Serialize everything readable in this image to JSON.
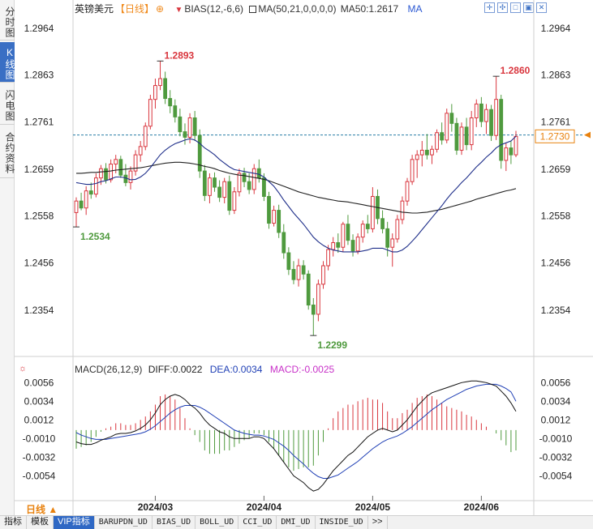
{
  "left_tabs": [
    {
      "label": "分时图",
      "active": false
    },
    {
      "label": "K线图",
      "active": true
    },
    {
      "label": "闪电图",
      "active": false
    },
    {
      "label": "合约资料",
      "active": false
    }
  ],
  "header": {
    "title": "英镑美元",
    "period": "【日线】",
    "settings_icon": "⊕",
    "bias_label": "BIAS(12,-6,6)",
    "ma_label": "MA(50,21,0,0,0,0)",
    "ma50_label": "MA50:1.2617",
    "ma_link": "MA"
  },
  "tool_icons": [
    "expand-icon",
    "shrink-icon",
    "window-icon",
    "restore-icon",
    "close-icon"
  ],
  "macd_header": {
    "title": "MACD(26,12,9)",
    "diff": "DIFF:0.0022",
    "dea": "DEA:0.0034",
    "macd": "MACD:-0.0025"
  },
  "period_badge": "日线 ▲",
  "bottom_tabs": [
    {
      "label": "指标",
      "active": false,
      "mono": false
    },
    {
      "label": "模板",
      "active": false,
      "mono": false
    },
    {
      "label": "VIP指标",
      "active": true,
      "mono": false
    },
    {
      "label": "BARUPDN_UD",
      "active": false,
      "mono": true
    },
    {
      "label": "BIAS_UD",
      "active": false,
      "mono": true
    },
    {
      "label": "BOLL_UD",
      "active": false,
      "mono": true
    },
    {
      "label": "CCI_UD",
      "active": false,
      "mono": true
    },
    {
      "label": "DMI_UD",
      "active": false,
      "mono": true
    },
    {
      "label": "INSIDE_UD",
      "active": false,
      "mono": true
    },
    {
      "label": ">>",
      "active": false,
      "mono": false
    }
  ],
  "colors": {
    "up": "#d9363e",
    "down": "#4f9a3e",
    "ma21": "#1f2f8a",
    "ma50": "#222222",
    "crosshair": "#2a7fa6",
    "price_tag": "#e8820f",
    "macd_dea": "#1f3fb5",
    "macd_diff": "#111111"
  },
  "chart_data": [
    {
      "type": "candlestick",
      "title": "英镑美元 日线",
      "ylim": [
        1.228,
        1.299
      ],
      "y_ticks": [
        "1.2964",
        "1.2863",
        "1.2761",
        "1.2659",
        "1.2558",
        "1.2456",
        "1.2354"
      ],
      "y_tick_values": [
        1.2964,
        1.2863,
        1.2761,
        1.2659,
        1.2558,
        1.2456,
        1.2354
      ],
      "x_ticks": [
        "2024/03",
        "2024/04",
        "2024/05",
        "2024/06"
      ],
      "x_tick_index": [
        16,
        38,
        60,
        82
      ],
      "annotations": [
        {
          "text": "1.2893",
          "index": 17,
          "value": 1.2893,
          "color": "up",
          "pos": "high"
        },
        {
          "text": "1.2534",
          "index": 0,
          "value": 1.2534,
          "color": "down",
          "pos": "low"
        },
        {
          "text": "1.2299",
          "index": 48,
          "value": 1.2299,
          "color": "down",
          "pos": "low"
        },
        {
          "text": "1.2860",
          "index": 85,
          "value": 1.286,
          "color": "up",
          "pos": "high"
        }
      ],
      "current_price": {
        "label": "1.2730",
        "value": 1.273
      },
      "dashed_level": 1.2733,
      "ohlc": [
        [
          1.2565,
          1.2598,
          1.2534,
          1.259
        ],
        [
          1.259,
          1.2608,
          1.257,
          1.2575
        ],
        [
          1.2575,
          1.2622,
          1.256,
          1.2612
        ],
        [
          1.2612,
          1.263,
          1.2595,
          1.2605
        ],
        [
          1.2605,
          1.265,
          1.2598,
          1.264
        ],
        [
          1.264,
          1.2668,
          1.2625,
          1.266
        ],
        [
          1.266,
          1.2672,
          1.2628,
          1.2636
        ],
        [
          1.2636,
          1.268,
          1.263,
          1.267
        ],
        [
          1.267,
          1.269,
          1.265,
          1.268
        ],
        [
          1.268,
          1.2688,
          1.264,
          1.2646
        ],
        [
          1.2646,
          1.267,
          1.2622,
          1.263
        ],
        [
          1.263,
          1.2665,
          1.2615,
          1.2655
        ],
        [
          1.2655,
          1.27,
          1.2645,
          1.269
        ],
        [
          1.269,
          1.272,
          1.2675,
          1.2708
        ],
        [
          1.2708,
          1.276,
          1.27,
          1.2752
        ],
        [
          1.2752,
          1.282,
          1.2745,
          1.281
        ],
        [
          1.281,
          1.2855,
          1.279,
          1.284
        ],
        [
          1.284,
          1.2893,
          1.283,
          1.2855
        ],
        [
          1.2855,
          1.287,
          1.28,
          1.2812
        ],
        [
          1.2812,
          1.283,
          1.278,
          1.2796
        ],
        [
          1.2796,
          1.281,
          1.276,
          1.2772
        ],
        [
          1.2772,
          1.279,
          1.273,
          1.274
        ],
        [
          1.274,
          1.2758,
          1.2712,
          1.2728
        ],
        [
          1.2728,
          1.278,
          1.2715,
          1.277
        ],
        [
          1.277,
          1.2785,
          1.272,
          1.2732
        ],
        [
          1.2732,
          1.2745,
          1.264,
          1.2655
        ],
        [
          1.2655,
          1.2668,
          1.259,
          1.2602
        ],
        [
          1.2602,
          1.265,
          1.2585,
          1.264
        ],
        [
          1.264,
          1.2652,
          1.261,
          1.262
        ],
        [
          1.262,
          1.2635,
          1.2588,
          1.2598
        ],
        [
          1.2598,
          1.264,
          1.2585,
          1.2632
        ],
        [
          1.2632,
          1.2645,
          1.256,
          1.257
        ],
        [
          1.257,
          1.262,
          1.2562,
          1.261
        ],
        [
          1.261,
          1.266,
          1.26,
          1.265
        ],
        [
          1.265,
          1.2662,
          1.262,
          1.2632
        ],
        [
          1.2632,
          1.265,
          1.2605,
          1.2615
        ],
        [
          1.2615,
          1.267,
          1.2605,
          1.266
        ],
        [
          1.266,
          1.268,
          1.263,
          1.264
        ],
        [
          1.264,
          1.265,
          1.259,
          1.26
        ],
        [
          1.26,
          1.261,
          1.253,
          1.2542
        ],
        [
          1.2542,
          1.258,
          1.2535,
          1.257
        ],
        [
          1.257,
          1.2582,
          1.251,
          1.2522
        ],
        [
          1.2522,
          1.254,
          1.2465,
          1.2478
        ],
        [
          1.2478,
          1.249,
          1.243,
          1.2442
        ],
        [
          1.2442,
          1.246,
          1.241,
          1.242
        ],
        [
          1.242,
          1.2465,
          1.2405,
          1.245
        ],
        [
          1.245,
          1.2462,
          1.242,
          1.2432
        ],
        [
          1.2432,
          1.244,
          1.2355,
          1.2365
        ],
        [
          1.2365,
          1.238,
          1.2299,
          1.2345
        ],
        [
          1.2345,
          1.242,
          1.233,
          1.241
        ],
        [
          1.241,
          1.246,
          1.24,
          1.245
        ],
        [
          1.245,
          1.2495,
          1.244,
          1.2485
        ],
        [
          1.2485,
          1.2512,
          1.247,
          1.25
        ],
        [
          1.25,
          1.252,
          1.2478,
          1.249
        ],
        [
          1.249,
          1.2545,
          1.248,
          1.254
        ],
        [
          1.254,
          1.256,
          1.2495,
          1.2505
        ],
        [
          1.2505,
          1.2518,
          1.247,
          1.2482
        ],
        [
          1.2482,
          1.252,
          1.2475,
          1.2512
        ],
        [
          1.2512,
          1.2548,
          1.25,
          1.254
        ],
        [
          1.254,
          1.256,
          1.252,
          1.253
        ],
        [
          1.253,
          1.262,
          1.2522,
          1.26
        ],
        [
          1.26,
          1.2615,
          1.254,
          1.2552
        ],
        [
          1.2552,
          1.257,
          1.252,
          1.253
        ],
        [
          1.253,
          1.2545,
          1.247,
          1.249
        ],
        [
          1.249,
          1.252,
          1.2448,
          1.2508
        ],
        [
          1.2508,
          1.256,
          1.25,
          1.255
        ],
        [
          1.255,
          1.26,
          1.254,
          1.259
        ],
        [
          1.259,
          1.264,
          1.258,
          1.2632
        ],
        [
          1.2632,
          1.269,
          1.2625,
          1.268
        ],
        [
          1.268,
          1.27,
          1.264,
          1.269
        ],
        [
          1.269,
          1.272,
          1.2665,
          1.27
        ],
        [
          1.27,
          1.2735,
          1.268,
          1.269
        ],
        [
          1.269,
          1.271,
          1.267,
          1.2702
        ],
        [
          1.2702,
          1.2745,
          1.2695,
          1.2738
        ],
        [
          1.2738,
          1.276,
          1.2712,
          1.2722
        ],
        [
          1.2722,
          1.279,
          1.2715,
          1.278
        ],
        [
          1.278,
          1.28,
          1.274,
          1.2758
        ],
        [
          1.2758,
          1.277,
          1.269,
          1.27
        ],
        [
          1.27,
          1.276,
          1.269,
          1.275
        ],
        [
          1.275,
          1.277,
          1.27,
          1.2712
        ],
        [
          1.2712,
          1.2785,
          1.27,
          1.277
        ],
        [
          1.277,
          1.281,
          1.275,
          1.28
        ],
        [
          1.28,
          1.2815,
          1.275,
          1.2762
        ],
        [
          1.2762,
          1.28,
          1.2735,
          1.2788
        ],
        [
          1.2788,
          1.2798,
          1.272,
          1.2732
        ],
        [
          1.2732,
          1.286,
          1.2722,
          1.281
        ],
        [
          1.281,
          1.282,
          1.266,
          1.2678
        ],
        [
          1.2678,
          1.2715,
          1.2655,
          1.2705
        ],
        [
          1.2705,
          1.272,
          1.267,
          1.269
        ],
        [
          1.269,
          1.2742,
          1.2685,
          1.273
        ]
      ],
      "ma21": [
        1.263,
        1.2628,
        1.2626,
        1.2626,
        1.2628,
        1.2632,
        1.2634,
        1.2638,
        1.2642,
        1.2642,
        1.264,
        1.2636,
        1.2637,
        1.2642,
        1.265,
        1.2662,
        1.2676,
        1.269,
        1.27,
        1.2708,
        1.2714,
        1.2718,
        1.2722,
        1.2725,
        1.2722,
        1.2715,
        1.2705,
        1.2698,
        1.269,
        1.268,
        1.2672,
        1.2664,
        1.2658,
        1.2656,
        1.2654,
        1.2652,
        1.265,
        1.2648,
        1.2642,
        1.2632,
        1.2622,
        1.2608,
        1.2592,
        1.2578,
        1.2564,
        1.2552,
        1.254,
        1.2526,
        1.2512,
        1.2502,
        1.2494,
        1.2488,
        1.2484,
        1.2482,
        1.248,
        1.248,
        1.248,
        1.248,
        1.2482,
        1.2484,
        1.2488,
        1.2488,
        1.2488,
        1.2484,
        1.248,
        1.248,
        1.2484,
        1.2492,
        1.2503,
        1.2515,
        1.2528,
        1.2541,
        1.2554,
        1.2567,
        1.258,
        1.2594,
        1.2607,
        1.2618,
        1.263,
        1.264,
        1.2652,
        1.2664,
        1.2674,
        1.2685,
        1.2694,
        1.2705,
        1.2712,
        1.2716,
        1.272,
        1.273
      ],
      "ma50": [
        1.265,
        1.265,
        1.2651,
        1.2652,
        1.2652,
        1.2653,
        1.2654,
        1.2655,
        1.2657,
        1.2658,
        1.2659,
        1.266,
        1.2661,
        1.2662,
        1.2664,
        1.2666,
        1.2668,
        1.267,
        1.2672,
        1.2673,
        1.2674,
        1.2674,
        1.2673,
        1.2672,
        1.267,
        1.2668,
        1.2665,
        1.2663,
        1.266,
        1.2656,
        1.2653,
        1.265,
        1.2648,
        1.2646,
        1.2645,
        1.2643,
        1.2641,
        1.2639,
        1.2637,
        1.2634,
        1.263,
        1.2626,
        1.2622,
        1.2618,
        1.2614,
        1.261,
        1.2607,
        1.2604,
        1.2601,
        1.2598,
        1.2596,
        1.2594,
        1.2592,
        1.259,
        1.2589,
        1.2588,
        1.2586,
        1.2584,
        1.2582,
        1.258,
        1.2578,
        1.2576,
        1.2574,
        1.2572,
        1.257,
        1.2568,
        1.2566,
        1.2565,
        1.2564,
        1.2564,
        1.2565,
        1.2566,
        1.2568,
        1.257,
        1.2572,
        1.2575,
        1.2578,
        1.2581,
        1.2584,
        1.2587,
        1.259,
        1.2594,
        1.2597,
        1.26,
        1.2603,
        1.2606,
        1.2609,
        1.2612,
        1.2614,
        1.2617
      ]
    },
    {
      "type": "macd",
      "title": "MACD(26,12,9)",
      "ylim": [
        -0.0068,
        0.0062
      ],
      "y_ticks": [
        "0.0056",
        "0.0034",
        "0.0012",
        "-0.0010",
        "-0.0032",
        "-0.0054"
      ],
      "y_tick_values": [
        0.0056,
        0.0034,
        0.0012,
        -0.001,
        -0.0032,
        -0.0054
      ],
      "diff": [
        -0.0014,
        -0.0016,
        -0.0017,
        -0.0017,
        -0.0015,
        -0.0012,
        -0.001,
        -0.0008,
        -0.0005,
        -0.0004,
        -0.0004,
        -0.0003,
        -0.0001,
        0.0002,
        0.0006,
        0.0012,
        0.002,
        0.003,
        0.0036,
        0.004,
        0.0042,
        0.004,
        0.0036,
        0.003,
        0.0026,
        0.002,
        0.0012,
        0.0006,
        0.0002,
        -0.0002,
        -0.0004,
        -0.0008,
        -0.001,
        -0.001,
        -0.001,
        -0.001,
        -0.0008,
        -0.0008,
        -0.001,
        -0.0016,
        -0.0022,
        -0.003,
        -0.0038,
        -0.0046,
        -0.0054,
        -0.0058,
        -0.0062,
        -0.0068,
        -0.0072,
        -0.007,
        -0.0064,
        -0.0056,
        -0.0048,
        -0.0042,
        -0.0036,
        -0.003,
        -0.0026,
        -0.002,
        -0.0014,
        -0.0008,
        -0.0004,
        0.0,
        0.0002,
        0.0,
        -0.0002,
        0.0,
        0.0006,
        0.0012,
        0.002,
        0.0028,
        0.0034,
        0.004,
        0.0044,
        0.0046,
        0.0048,
        0.005,
        0.0052,
        0.0054,
        0.0056,
        0.0057,
        0.0058,
        0.0058,
        0.0057,
        0.0056,
        0.0054,
        0.0052,
        0.0046,
        0.004,
        0.0032,
        0.0022
      ],
      "dea": [
        -0.0003,
        -0.0006,
        -0.0008,
        -0.001,
        -0.0011,
        -0.0011,
        -0.0011,
        -0.001,
        -0.0009,
        -0.0008,
        -0.0007,
        -0.0006,
        -0.0005,
        -0.0004,
        -0.0002,
        0.0001,
        0.0005,
        0.001,
        0.0015,
        0.002,
        0.0024,
        0.0027,
        0.0029,
        0.0029,
        0.0029,
        0.0027,
        0.0024,
        0.002,
        0.0016,
        0.0012,
        0.0008,
        0.0004,
        0.0,
        -0.0002,
        -0.0004,
        -0.0005,
        -0.0006,
        -0.0006,
        -0.0007,
        -0.0009,
        -0.0011,
        -0.0015,
        -0.0019,
        -0.0024,
        -0.003,
        -0.0035,
        -0.004,
        -0.0046,
        -0.0051,
        -0.0055,
        -0.0057,
        -0.0057,
        -0.0055,
        -0.0053,
        -0.0049,
        -0.0045,
        -0.0041,
        -0.0037,
        -0.0032,
        -0.0027,
        -0.0022,
        -0.0018,
        -0.0014,
        -0.0011,
        -0.0009,
        -0.0007,
        -0.0004,
        0.0,
        0.0004,
        0.0009,
        0.0014,
        0.0019,
        0.0024,
        0.0028,
        0.0032,
        0.0036,
        0.0039,
        0.0042,
        0.0045,
        0.0048,
        0.005,
        0.0052,
        0.0053,
        0.0054,
        0.0054,
        0.0054,
        0.0052,
        0.0049,
        0.0045,
        0.0034
      ]
    }
  ]
}
